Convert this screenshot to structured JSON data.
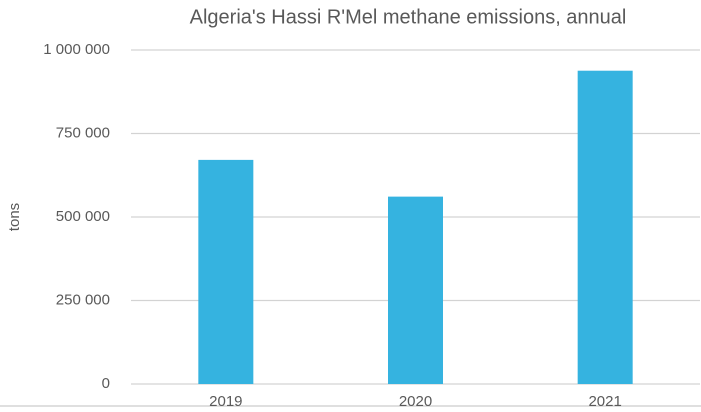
{
  "chart_data": {
    "type": "bar",
    "title": "Algeria's Hassi R'Mel methane emissions, annual",
    "y_label": "tons",
    "categories": [
      "2019",
      "2020",
      "2021"
    ],
    "values": [
      671000,
      561000,
      938000
    ],
    "color": "#35b3e0",
    "ylim": [
      0,
      1000000
    ],
    "yticks": [
      0,
      {
        "value": 250000,
        "label": "250 000"
      },
      {
        "value": 500000,
        "label": "500 000"
      },
      {
        "value": 750000,
        "label": "750 000"
      },
      {
        "value": 1000000,
        "label": "1 000 000"
      }
    ],
    "grid": true
  }
}
